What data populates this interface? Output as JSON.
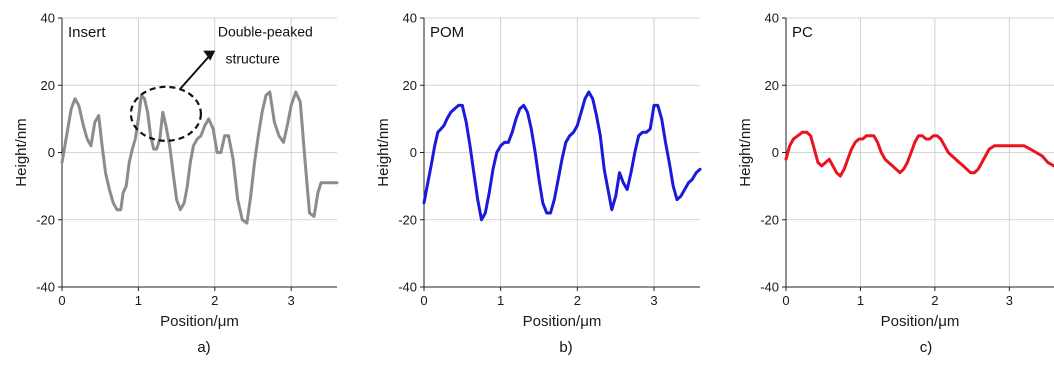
{
  "chart_data": [
    {
      "type": "line",
      "panel_label": "a)",
      "title": "Insert",
      "xlabel": "Position/μm",
      "ylabel": "Height/nm",
      "xlim": [
        0,
        3.6
      ],
      "ylim": [
        -40,
        40
      ],
      "xticks": [
        0,
        1,
        2,
        3
      ],
      "yticks": [
        -40,
        -20,
        0,
        20,
        40
      ],
      "grid": true,
      "annotation": {
        "text_line1": "Double-peaked",
        "text_line2": "structure"
      },
      "series": [
        {
          "color": "#8c8c8c",
          "x": [
            0,
            0.06,
            0.12,
            0.17,
            0.22,
            0.28,
            0.33,
            0.38,
            0.43,
            0.48,
            0.52,
            0.57,
            0.62,
            0.67,
            0.72,
            0.77,
            0.8,
            0.84,
            0.88,
            0.92,
            0.96,
            1.0,
            1.04,
            1.08,
            1.12,
            1.16,
            1.2,
            1.24,
            1.28,
            1.32,
            1.36,
            1.41,
            1.46,
            1.5,
            1.55,
            1.6,
            1.64,
            1.68,
            1.72,
            1.77,
            1.82,
            1.87,
            1.92,
            1.98,
            2.03,
            2.08,
            2.13,
            2.18,
            2.24,
            2.3,
            2.36,
            2.42,
            2.47,
            2.52,
            2.57,
            2.62,
            2.67,
            2.72,
            2.78,
            2.84,
            2.9,
            2.95,
            3.0,
            3.06,
            3.12,
            3.18,
            3.24,
            3.3,
            3.35,
            3.39,
            3.43,
            3.48,
            3.53,
            3.58,
            3.6
          ],
          "values": [
            -3,
            5,
            13,
            16,
            14,
            8,
            4,
            2,
            9,
            11,
            3,
            -6,
            -11,
            -15,
            -17,
            -17,
            -12,
            -10,
            -3,
            1,
            4,
            10,
            17,
            16,
            12,
            5,
            1,
            1,
            4,
            12,
            8,
            2,
            -7,
            -14,
            -17,
            -15,
            -10,
            -3,
            2,
            4,
            5,
            8,
            10,
            7,
            0,
            0,
            5,
            5,
            -2,
            -14,
            -20,
            -21,
            -13,
            -3,
            5,
            12,
            17,
            18,
            9,
            5,
            3,
            8,
            14,
            18,
            15,
            -2,
            -18,
            -19,
            -12,
            -9,
            -9,
            -9,
            -9,
            -9,
            -9
          ]
        }
      ]
    },
    {
      "type": "line",
      "panel_label": "b)",
      "title": "POM",
      "xlabel": "Position/μm",
      "ylabel": "Height/nm",
      "xlim": [
        0,
        3.6
      ],
      "ylim": [
        -40,
        40
      ],
      "xticks": [
        0,
        1,
        2,
        3
      ],
      "yticks": [
        -40,
        -20,
        0,
        20,
        40
      ],
      "grid": true,
      "series": [
        {
          "color": "#1a1adb",
          "x": [
            0,
            0.05,
            0.1,
            0.14,
            0.18,
            0.22,
            0.26,
            0.3,
            0.35,
            0.4,
            0.45,
            0.5,
            0.55,
            0.6,
            0.65,
            0.7,
            0.75,
            0.8,
            0.85,
            0.9,
            0.95,
            1.0,
            1.05,
            1.1,
            1.15,
            1.2,
            1.25,
            1.3,
            1.35,
            1.4,
            1.45,
            1.5,
            1.55,
            1.6,
            1.65,
            1.7,
            1.75,
            1.8,
            1.85,
            1.9,
            1.95,
            2.0,
            2.05,
            2.1,
            2.15,
            2.2,
            2.25,
            2.3,
            2.35,
            2.4,
            2.45,
            2.5,
            2.55,
            2.6,
            2.65,
            2.7,
            2.75,
            2.8,
            2.85,
            2.9,
            2.95,
            3.0,
            3.05,
            3.1,
            3.15,
            3.2,
            3.25,
            3.3,
            3.35,
            3.4,
            3.45,
            3.5,
            3.55,
            3.6
          ],
          "values": [
            -15,
            -9,
            -3,
            2,
            6,
            7,
            8,
            10,
            12,
            13,
            14,
            14,
            9,
            2,
            -6,
            -14,
            -20,
            -18,
            -12,
            -5,
            0,
            2,
            3,
            3,
            6,
            10,
            13,
            14,
            12,
            7,
            0,
            -8,
            -15,
            -18,
            -18,
            -14,
            -8,
            -2,
            3,
            5,
            6,
            8,
            12,
            16,
            18,
            16,
            11,
            5,
            -5,
            -11,
            -17,
            -13,
            -6,
            -9,
            -11,
            -6,
            0,
            5,
            6,
            6,
            7,
            14,
            14,
            10,
            3,
            -3,
            -10,
            -14,
            -13,
            -11,
            -9,
            -8,
            -6,
            -5
          ]
        }
      ]
    },
    {
      "type": "line",
      "panel_label": "c)",
      "title": "PC",
      "xlabel": "Position/μm",
      "ylabel": "Height/nm",
      "xlim": [
        0,
        3.6
      ],
      "ylim": [
        -40,
        40
      ],
      "xticks": [
        0,
        1,
        2,
        3
      ],
      "yticks": [
        -40,
        -20,
        0,
        20,
        40
      ],
      "grid": true,
      "series": [
        {
          "color": "#e8141e",
          "x": [
            0,
            0.05,
            0.1,
            0.16,
            0.22,
            0.28,
            0.33,
            0.38,
            0.43,
            0.48,
            0.53,
            0.58,
            0.63,
            0.68,
            0.73,
            0.78,
            0.83,
            0.88,
            0.93,
            0.98,
            1.03,
            1.08,
            1.13,
            1.18,
            1.23,
            1.28,
            1.33,
            1.38,
            1.43,
            1.48,
            1.53,
            1.58,
            1.63,
            1.68,
            1.73,
            1.78,
            1.83,
            1.88,
            1.93,
            1.98,
            2.03,
            2.08,
            2.13,
            2.18,
            2.23,
            2.28,
            2.33,
            2.38,
            2.43,
            2.48,
            2.53,
            2.58,
            2.63,
            2.68,
            2.73,
            2.8,
            2.88,
            2.96,
            3.04,
            3.12,
            3.2,
            3.28,
            3.36,
            3.44,
            3.52,
            3.6
          ],
          "values": [
            -2,
            2,
            4,
            5,
            6,
            6,
            5,
            1,
            -3,
            -4,
            -3,
            -2,
            -4,
            -6,
            -7,
            -5,
            -2,
            1,
            3,
            4,
            4,
            5,
            5,
            5,
            3,
            0,
            -2,
            -3,
            -4,
            -5,
            -6,
            -5,
            -3,
            0,
            3,
            5,
            5,
            4,
            4,
            5,
            5,
            4,
            2,
            0,
            -1,
            -2,
            -3,
            -4,
            -5,
            -6,
            -6,
            -5,
            -3,
            -1,
            1,
            2,
            2,
            2,
            2,
            2,
            2,
            1,
            0,
            -1,
            -3,
            -4
          ]
        }
      ]
    }
  ]
}
